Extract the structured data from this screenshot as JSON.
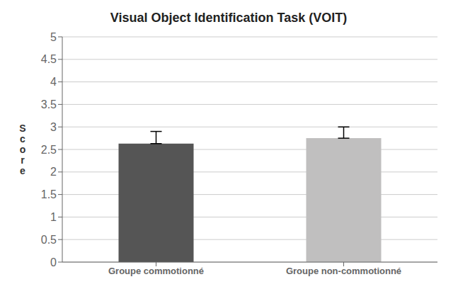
{
  "chart_data": {
    "type": "bar",
    "title": "Visual Object Identification Task (VOIT)",
    "categories": [
      "Groupe commotionné",
      "Groupe non-commotionné"
    ],
    "values": [
      2.63,
      2.75
    ],
    "errors": [
      0.27,
      0.25
    ],
    "colors": [
      "#555555",
      "#c0bfbf"
    ],
    "ylabel": "Score",
    "ylim": [
      0,
      5
    ],
    "yticks": [
      0,
      0.5,
      1,
      1.5,
      2,
      2.5,
      3,
      3.5,
      4,
      4.5,
      5
    ],
    "grid": true
  }
}
